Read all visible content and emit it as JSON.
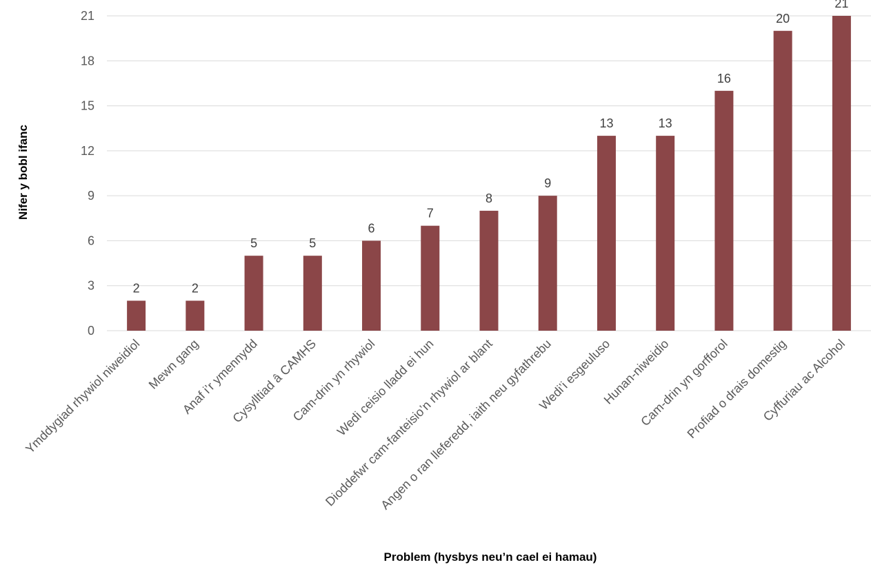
{
  "chart_data": {
    "type": "bar",
    "categories": [
      "Ymddygiad rhywiol niweidiol",
      "Mewn gang",
      "Anaf i’r ymennydd",
      "Cysylltiad â CAMHS",
      "Cam-drin yn rhywiol",
      "Wedi ceisio lladd ei hun",
      "Dioddefwr cam-fanteisio’n rhywiol ar blant",
      "Angen o ran lleferedd, iaith neu gyfathrebu",
      "Wedi’i esgeuluso",
      "Hunan-niweidio",
      "Cam-drin yn gorfforol",
      "Profiad o drais domestig",
      "Cyffuriau ac Alcohol"
    ],
    "values": [
      2,
      2,
      5,
      5,
      6,
      7,
      8,
      9,
      13,
      13,
      16,
      20,
      21
    ],
    "title": "",
    "xlabel": "Problem (hysbys neu’n cael ei hamau)",
    "ylabel": "Nifer y bobl ifanc",
    "ylim": [
      0,
      21
    ],
    "yticks": [
      0,
      3,
      6,
      9,
      12,
      15,
      18,
      21
    ],
    "bar_color": "#8b4648",
    "grid": true,
    "legend": "none",
    "data_labels": true
  }
}
